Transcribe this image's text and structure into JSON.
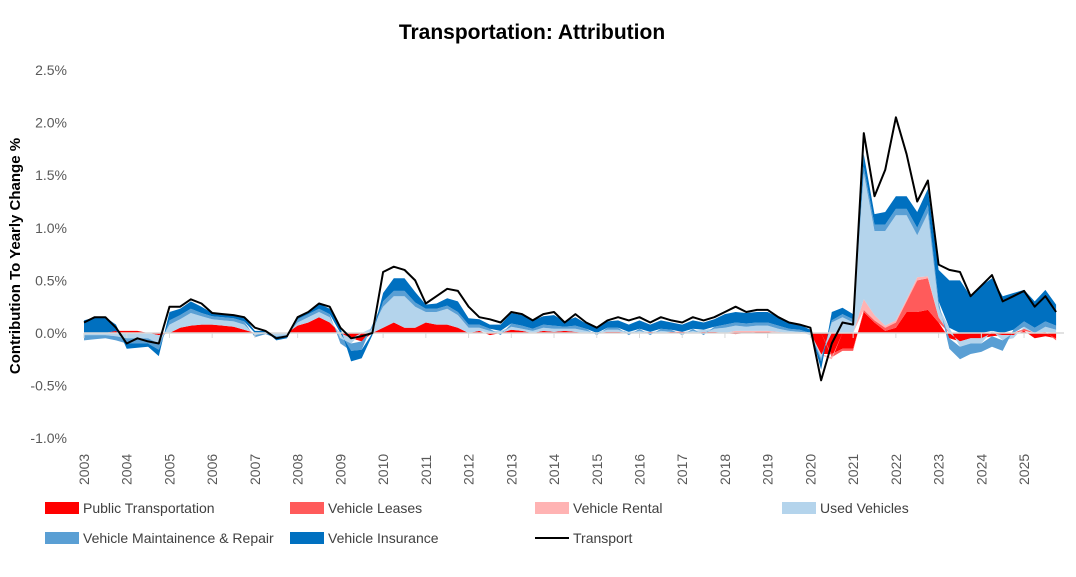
{
  "chart_data": {
    "type": "area",
    "title": "Transportation: Attribution",
    "ylabel": "Contribution To Yearly Change %",
    "xlabel": "",
    "ylim": [
      -1.0,
      2.5
    ],
    "yticks": [
      -1.0,
      -0.5,
      0.0,
      0.5,
      1.0,
      1.5,
      2.0,
      2.5
    ],
    "ytick_labels": [
      "-1.0%",
      "-0.5%",
      "0.0%",
      "0.5%",
      "1.0%",
      "1.5%",
      "2.0%",
      "2.5%"
    ],
    "xticks": [
      "2003",
      "2004",
      "2005",
      "2006",
      "2007",
      "2008",
      "2009",
      "2010",
      "2011",
      "2012",
      "2013",
      "2014",
      "2015",
      "2016",
      "2017",
      "2018",
      "2019",
      "2020",
      "2021",
      "2022",
      "2023",
      "2024",
      "2025"
    ],
    "x_start": 2003.0,
    "x_step": 0.25,
    "grid": false,
    "legend_position": "bottom",
    "stacked": true,
    "series": [
      {
        "name": "Public Transportation",
        "color": "#FF0000",
        "kind": "area",
        "values": [
          0,
          0,
          0,
          0.02,
          0.02,
          0.02,
          0,
          -0.02,
          0,
          0.05,
          0.07,
          0.08,
          0.08,
          0.07,
          0.06,
          0.03,
          0,
          0,
          0,
          0,
          0.07,
          0.1,
          0.15,
          0.1,
          0,
          -0.05,
          -0.08,
          0,
          0.05,
          0.1,
          0.05,
          0.05,
          0.1,
          0.08,
          0.08,
          0.05,
          0,
          0.02,
          -0.02,
          0,
          0.03,
          0.02,
          0,
          0.02,
          0.01,
          0.02,
          0.01,
          0,
          0,
          0.01,
          0.01,
          0,
          0,
          0.01,
          0,
          0.01,
          0.01,
          0,
          0.01,
          0.01,
          0,
          -0.01,
          0,
          0.01,
          0.01,
          0,
          0,
          0,
          0,
          -0.2,
          -0.2,
          -0.15,
          -0.15,
          0.2,
          0.1,
          0.02,
          0.05,
          0.2,
          0.2,
          0.22,
          0.1,
          -0.05,
          -0.08,
          -0.05,
          -0.05,
          -0.03,
          -0.02,
          -0.02,
          0.02,
          -0.05,
          -0.03,
          -0.05
        ]
      },
      {
        "name": "Vehicle Leases",
        "color": "#FF5B5B",
        "kind": "area",
        "values": [
          0,
          0,
          0,
          0,
          0,
          0,
          0,
          0,
          0,
          0,
          0,
          0,
          0,
          0,
          0,
          0,
          0,
          0,
          0,
          0,
          0,
          0,
          0,
          0,
          0,
          0,
          0,
          0,
          0,
          0,
          0,
          0,
          0,
          0,
          0,
          0,
          0,
          0,
          0,
          0,
          0,
          0,
          0,
          0,
          0,
          0,
          0,
          0,
          0,
          0,
          0,
          0,
          0,
          0,
          0,
          0,
          0,
          0,
          0,
          0,
          0,
          0.01,
          0.01,
          0,
          0,
          0,
          0,
          0,
          0,
          0,
          -0.03,
          -0.02,
          -0.02,
          0.02,
          0.02,
          0.03,
          0.05,
          0.1,
          0.3,
          0.3,
          0.05,
          0,
          0,
          0,
          0,
          0,
          0,
          0,
          0.02,
          0,
          0.01,
          -0.02
        ]
      },
      {
        "name": "Vehicle Rental",
        "color": "#FFB3B3",
        "kind": "area",
        "values": [
          0,
          0,
          0,
          0,
          0,
          0,
          0,
          0,
          0,
          0,
          0,
          0,
          0,
          0,
          0,
          0,
          0,
          0,
          0,
          0,
          0,
          0,
          0,
          0,
          0,
          0,
          0,
          0,
          0,
          0,
          0,
          0,
          0,
          0,
          0,
          0,
          0,
          0,
          0,
          0,
          0,
          0,
          0,
          0,
          0,
          0,
          0,
          0,
          0,
          0,
          0,
          0,
          0,
          0,
          0,
          0,
          0,
          0,
          0,
          0,
          0,
          0.01,
          0.01,
          0.01,
          0.01,
          0.01,
          0,
          0,
          0,
          -0.01,
          -0.02,
          0,
          0,
          0.1,
          0.05,
          0.02,
          0.02,
          0.02,
          0.03,
          0.02,
          0,
          0,
          0,
          0,
          0,
          0,
          0,
          0,
          0,
          0,
          0,
          0
        ]
      },
      {
        "name": "Used Vehicles",
        "color": "#B4D4EC",
        "kind": "area",
        "values": [
          -0.02,
          -0.02,
          -0.02,
          -0.03,
          -0.05,
          -0.05,
          -0.05,
          -0.08,
          0.08,
          0.08,
          0.12,
          0.08,
          0.05,
          0.05,
          0.05,
          0.05,
          -0.02,
          0,
          -0.03,
          -0.02,
          0.03,
          0.05,
          0.05,
          0.05,
          -0.05,
          -0.05,
          0,
          0.05,
          0.2,
          0.25,
          0.3,
          0.2,
          0.1,
          0.12,
          0.15,
          0.12,
          0.05,
          0.03,
          0.02,
          0.02,
          0.03,
          0.02,
          0.02,
          0.03,
          0.03,
          0.02,
          0.03,
          0.02,
          0,
          0.02,
          0.02,
          0.01,
          0.02,
          0,
          0.02,
          0,
          0,
          0.02,
          0.02,
          0.03,
          0.05,
          0.05,
          0.04,
          0.05,
          0.05,
          0.03,
          0.02,
          0.01,
          -0.02,
          -0.03,
          0.1,
          0.15,
          0.1,
          1.2,
          0.8,
          0.9,
          1.0,
          0.8,
          0.4,
          0.6,
          0.1,
          0.05,
          -0.05,
          -0.05,
          -0.05,
          0.02,
          -0.05,
          -0.03,
          0.02,
          0,
          0.05,
          0.03
        ]
      },
      {
        "name": "Vehicle Maintainence & Repair",
        "color": "#5A9FD4",
        "kind": "area",
        "values": [
          -0.05,
          -0.04,
          -0.03,
          -0.04,
          -0.05,
          -0.05,
          -0.05,
          -0.06,
          0.04,
          0.04,
          0.04,
          0.03,
          0.03,
          0.03,
          0.03,
          0.03,
          -0.02,
          -0.01,
          -0.02,
          -0.02,
          0.03,
          0.03,
          0.03,
          0.03,
          -0.05,
          -0.07,
          -0.08,
          0.03,
          0.05,
          0.05,
          0.05,
          0.04,
          0.03,
          0.03,
          0.03,
          0.03,
          0.03,
          0.03,
          0.02,
          -0.02,
          0.03,
          0.03,
          0.02,
          0.03,
          0.03,
          0.02,
          0.03,
          0.02,
          -0.02,
          0.02,
          0.02,
          -0.02,
          0.02,
          -0.02,
          0.02,
          0.02,
          -0.02,
          0.02,
          -0.02,
          0.02,
          0.03,
          0.03,
          0.03,
          0.03,
          0.03,
          0.03,
          0.02,
          0.02,
          0,
          -0.03,
          0.02,
          0.03,
          0.03,
          0.06,
          0.06,
          0.06,
          0.06,
          0.06,
          0.07,
          0.08,
          0.05,
          -0.1,
          -0.12,
          -0.1,
          -0.08,
          -0.1,
          -0.1,
          0.03,
          0.05,
          0.05,
          0.05,
          0.04
        ]
      },
      {
        "name": "Vehicle Insurance",
        "color": "#0070C0",
        "kind": "area",
        "values": [
          0.12,
          0.15,
          0.15,
          0.06,
          -0.05,
          -0.04,
          -0.03,
          -0.06,
          0.08,
          0.06,
          0.07,
          0.06,
          0.03,
          0.03,
          0.03,
          0.04,
          0.02,
          0.02,
          -0.02,
          -0.01,
          0.02,
          0.02,
          0.05,
          0.05,
          0.05,
          -0.1,
          -0.08,
          -0.02,
          0.08,
          0.12,
          0.12,
          0.1,
          0.04,
          0.05,
          0.07,
          0.1,
          0.06,
          0.05,
          0.04,
          0.06,
          0.1,
          0.1,
          0.08,
          0.08,
          0.1,
          0.05,
          0.08,
          0.05,
          0.05,
          0.06,
          0.07,
          0.07,
          0.08,
          0.07,
          0.08,
          0.07,
          0.07,
          0.08,
          0.07,
          0.07,
          0.1,
          0.1,
          0.1,
          0.1,
          0.1,
          0.08,
          0.06,
          0.05,
          0.03,
          -0.08,
          0.08,
          0.06,
          0.05,
          0.12,
          0.1,
          0.12,
          0.12,
          0.12,
          0.15,
          0.15,
          0.3,
          0.45,
          0.5,
          0.35,
          0.45,
          0.5,
          0.35,
          0.35,
          0.3,
          0.25,
          0.3,
          0.2
        ]
      },
      {
        "name": "Transport",
        "color": "#000000",
        "kind": "line",
        "values": [
          0.1,
          0.15,
          0.15,
          0.05,
          -0.1,
          -0.05,
          -0.08,
          -0.1,
          0.25,
          0.25,
          0.32,
          0.28,
          0.19,
          0.18,
          0.17,
          0.15,
          0.05,
          0.02,
          -0.05,
          -0.03,
          0.15,
          0.2,
          0.28,
          0.25,
          0.05,
          -0.05,
          -0.03,
          0,
          0.58,
          0.63,
          0.6,
          0.5,
          0.28,
          0.35,
          0.42,
          0.4,
          0.25,
          0.15,
          0.13,
          0.1,
          0.2,
          0.18,
          0.12,
          0.18,
          0.2,
          0.1,
          0.18,
          0.1,
          0.05,
          0.12,
          0.15,
          0.12,
          0.15,
          0.1,
          0.15,
          0.12,
          0.1,
          0.15,
          0.12,
          0.15,
          0.2,
          0.25,
          0.2,
          0.22,
          0.22,
          0.15,
          0.1,
          0.08,
          0.05,
          -0.45,
          -0.1,
          0.1,
          0.08,
          1.9,
          1.3,
          1.55,
          2.05,
          1.7,
          1.25,
          1.45,
          0.65,
          0.6,
          0.58,
          0.35,
          0.45,
          0.55,
          0.3,
          0.35,
          0.4,
          0.25,
          0.35,
          0.2
        ]
      }
    ]
  }
}
